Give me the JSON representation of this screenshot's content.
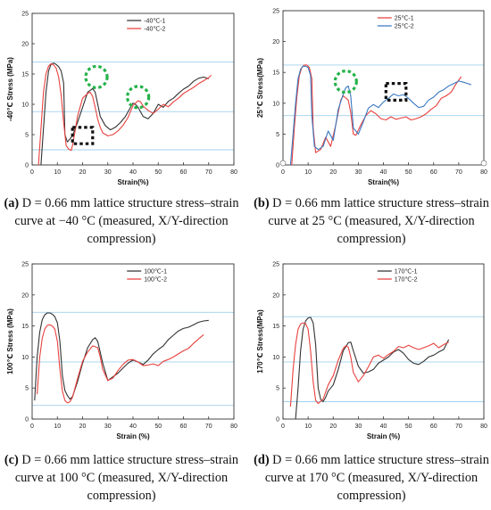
{
  "chart_data": [
    {
      "type": "line",
      "panel": "a",
      "ylabel": "-40℃ Stress (MPa)",
      "xlabel": "Strain(%)",
      "xlim": [
        0,
        80
      ],
      "ylim": [
        0,
        25
      ],
      "xticks": [
        0,
        10,
        20,
        30,
        40,
        50,
        60,
        70,
        80
      ],
      "yticks": [
        0,
        5,
        10,
        15,
        20,
        25
      ],
      "hlines": [
        2.5,
        8.8,
        17.0
      ],
      "legend_position": "top-right",
      "series": [
        {
          "name": "-40℃-1",
          "color": "#333333",
          "x": [
            3.5,
            4.5,
            5.5,
            6.5,
            7.5,
            8.5,
            9.5,
            10.5,
            11.5,
            12.5,
            13,
            14,
            16,
            18,
            20,
            22,
            24,
            25,
            26,
            27,
            29,
            31,
            33,
            35,
            37,
            39,
            40,
            41,
            42,
            44,
            46,
            48,
            50,
            52,
            54,
            56,
            58,
            60,
            62,
            64,
            66,
            68,
            70
          ],
          "y": [
            0,
            6,
            12,
            15.5,
            16.6,
            16.8,
            16.6,
            16.2,
            15.5,
            13.5,
            5,
            3.8,
            4.8,
            7,
            9.5,
            12,
            12.6,
            12,
            10,
            8,
            6.5,
            5.8,
            6.2,
            7,
            8,
            9.5,
            10.2,
            10,
            9.5,
            8,
            7.6,
            8.5,
            10,
            9.5,
            10.5,
            11,
            11.8,
            12.5,
            13,
            13.8,
            14.3,
            14.5,
            14.2
          ]
        },
        {
          "name": "-40℃-2",
          "color": "#e8413d",
          "x": [
            2.5,
            3.5,
            4.5,
            5.5,
            6.5,
            7.5,
            8.5,
            9.5,
            10.5,
            11.5,
            12.5,
            13.5,
            14.5,
            15.5,
            16,
            17,
            18,
            20,
            22,
            23,
            24,
            25,
            26,
            27,
            28,
            30,
            32,
            34,
            36,
            38,
            40,
            42,
            43,
            44,
            46,
            48,
            50,
            52,
            54,
            56,
            58,
            60,
            62,
            64,
            66,
            68,
            70,
            71
          ],
          "y": [
            0,
            6,
            12,
            15,
            16.3,
            16.7,
            16.5,
            16,
            14.5,
            11.5,
            7,
            3.2,
            2.6,
            2.4,
            3.2,
            5.5,
            8,
            11,
            11.8,
            12,
            11.3,
            9.5,
            7.5,
            6.2,
            5.3,
            4.8,
            5,
            5.6,
            6.5,
            7.8,
            9.8,
            10.6,
            10.4,
            9.7,
            9,
            8.5,
            9.2,
            10,
            9.6,
            10.4,
            11,
            11.8,
            12.3,
            12.8,
            13.4,
            13.9,
            14.4,
            14.8
          ]
        }
      ]
    },
    {
      "type": "line",
      "panel": "b",
      "ylabel": "25℃ Stress(MPa)",
      "xlabel": "Strain(%)",
      "xlim": [
        0,
        80
      ],
      "ylim": [
        0,
        25
      ],
      "xticks": [
        0,
        10,
        20,
        30,
        40,
        50,
        60,
        70,
        80
      ],
      "yticks": [
        0,
        5,
        10,
        15,
        20,
        25
      ],
      "hlines": [
        8.0,
        16.2
      ],
      "legend_position": "top-right",
      "series": [
        {
          "name": "25℃-1",
          "color": "#e8413d",
          "x": [
            3.5,
            4.5,
            5.5,
            6.5,
            7.5,
            8.5,
            9.5,
            10.5,
            11.5,
            12,
            13,
            15,
            17,
            19,
            21,
            23,
            24,
            26,
            27,
            28,
            29,
            31,
            33,
            35,
            37,
            39,
            41,
            43,
            45,
            47,
            49,
            51,
            53,
            55,
            57,
            59,
            61,
            63,
            65,
            67,
            69,
            71
          ],
          "y": [
            0,
            6,
            11,
            14.5,
            15.8,
            16.2,
            16.2,
            15.8,
            14,
            6,
            2,
            2.5,
            4.5,
            3,
            6.5,
            10.5,
            11.2,
            10.5,
            8.5,
            5,
            4.8,
            6.5,
            8,
            8.8,
            8.3,
            7.5,
            7.3,
            7.8,
            7.4,
            7.6,
            7.8,
            7.3,
            7.5,
            7.8,
            8.3,
            9,
            9.6,
            10.8,
            11.2,
            11.8,
            13.2,
            14.3
          ]
        },
        {
          "name": "25℃-2",
          "color": "#3a78c2",
          "x": [
            3,
            4,
            5,
            6,
            7,
            8,
            9,
            10,
            11,
            11.5,
            12.5,
            14,
            16,
            18,
            20,
            22,
            24,
            25,
            26,
            27,
            28,
            30,
            32,
            34,
            36,
            38,
            40,
            42,
            44,
            46,
            48,
            50,
            52,
            54,
            56,
            58,
            60,
            62,
            64,
            66,
            68,
            70,
            72,
            75
          ],
          "y": [
            0,
            5,
            10,
            14,
            15.5,
            16,
            16,
            15.8,
            14.5,
            8,
            3,
            2.5,
            3,
            5.5,
            4,
            9,
            11.5,
            12.5,
            12.8,
            11.2,
            6,
            5,
            7,
            9.2,
            9.8,
            9.3,
            10.2,
            10.8,
            11.5,
            11.2,
            11.4,
            10.8,
            10,
            9.3,
            9.5,
            10.5,
            11,
            11.8,
            12.2,
            12.8,
            13.2,
            13.6,
            13.4,
            13.0
          ]
        }
      ]
    },
    {
      "type": "line",
      "panel": "c",
      "ylabel": "100℃ Stress (MPa)",
      "xlabel": "Strain (%)",
      "xlim": [
        0,
        80
      ],
      "ylim": [
        0,
        25
      ],
      "xticks": [
        0,
        10,
        20,
        30,
        40,
        50,
        60,
        70,
        80
      ],
      "yticks": [
        0,
        5,
        10,
        15,
        20,
        25
      ],
      "hlines": [
        2.2,
        9.2,
        17.2
      ],
      "legend_position": "top-right",
      "series": [
        {
          "name": "100℃-1",
          "color": "#333333",
          "x": [
            1,
            2,
            3,
            4,
            5,
            6,
            7,
            8,
            9,
            10,
            11,
            12,
            13,
            14,
            15,
            16,
            18,
            20,
            22,
            24,
            25,
            26,
            28,
            30,
            32,
            34,
            36,
            38,
            40,
            42,
            44,
            46,
            48,
            50,
            52,
            54,
            56,
            58,
            60,
            62,
            64,
            66,
            68,
            70
          ],
          "y": [
            3,
            10,
            14,
            16,
            16.8,
            17.1,
            17.1,
            16.9,
            16.5,
            15.5,
            12.5,
            7,
            4.6,
            3.8,
            3.2,
            3.6,
            6,
            9,
            11.5,
            12.8,
            13.1,
            12.5,
            9,
            6.2,
            6.8,
            7.4,
            8.2,
            9,
            9.5,
            9.2,
            8.8,
            9.5,
            10.5,
            11.2,
            11.8,
            12.8,
            13.5,
            14.2,
            14.6,
            14.8,
            15.2,
            15.6,
            15.8,
            15.9
          ]
        },
        {
          "name": "100℃-2",
          "color": "#e8413d",
          "x": [
            2,
            3,
            4,
            5,
            6,
            7,
            8,
            9,
            10,
            11,
            12,
            13,
            14,
            15,
            16,
            18,
            20,
            22,
            24,
            26,
            27,
            28,
            30,
            32,
            34,
            36,
            38,
            40,
            42,
            44,
            46,
            48,
            50,
            52,
            54,
            56,
            58,
            60,
            62,
            64,
            66,
            68
          ],
          "y": [
            4,
            10,
            13,
            14.5,
            15.1,
            15.2,
            15,
            14.5,
            12.5,
            8,
            4.5,
            3,
            2.6,
            2.8,
            3.5,
            6.5,
            9.3,
            10.8,
            11.8,
            11.5,
            10,
            8,
            6.2,
            6.6,
            7.8,
            8.8,
            9.5,
            9.6,
            9.2,
            8.6,
            8.7,
            8.9,
            8.6,
            9.3,
            9.6,
            10,
            10.5,
            11,
            11.4,
            12.2,
            12.9,
            13.6
          ]
        }
      ]
    },
    {
      "type": "line",
      "panel": "d",
      "ylabel": "170℃ Stress(MPa)",
      "xlabel": "Strain (%)",
      "xlim": [
        0,
        80
      ],
      "ylim": [
        0,
        25
      ],
      "xticks": [
        0,
        10,
        20,
        30,
        40,
        50,
        60,
        70,
        80
      ],
      "yticks": [
        0,
        5,
        10,
        15,
        20,
        25
      ],
      "hlines": [
        2.8,
        9.2,
        16.5
      ],
      "legend_position": "top-right",
      "series": [
        {
          "name": "170℃-1",
          "color": "#333333",
          "x": [
            5,
            6,
            7,
            8,
            9,
            10,
            11,
            12,
            13,
            14,
            15,
            16,
            17,
            18,
            19,
            20,
            22,
            24,
            26,
            27,
            28,
            30,
            32,
            34,
            36,
            38,
            40,
            42,
            44,
            46,
            48,
            50,
            52,
            54,
            56,
            58,
            60,
            62,
            64,
            66
          ],
          "y": [
            0,
            5,
            11,
            14.5,
            15.8,
            16.3,
            16.4,
            15.5,
            12,
            5,
            3.2,
            2.8,
            3.5,
            4.5,
            5,
            5.5,
            8,
            11,
            12.3,
            12.4,
            11,
            8.5,
            7.4,
            7.6,
            8,
            9,
            9.5,
            10,
            10.8,
            11.2,
            10.6,
            9.6,
            9,
            8.8,
            9.3,
            10,
            10.3,
            10.8,
            11.2,
            12.8
          ]
        },
        {
          "name": "170℃-2",
          "color": "#e8413d",
          "x": [
            3,
            4,
            5,
            6,
            7,
            8,
            9,
            10,
            11,
            12,
            13,
            14,
            16,
            18,
            20,
            22,
            24,
            25,
            26,
            27,
            28,
            30,
            32,
            34,
            36,
            38,
            40,
            42,
            44,
            46,
            48,
            50,
            52,
            54,
            56,
            58,
            60,
            62,
            64,
            66
          ],
          "y": [
            2,
            8,
            12,
            14.5,
            15.3,
            15.5,
            15.4,
            14.5,
            11,
            6,
            3,
            2.5,
            3.2,
            5.5,
            7,
            9.5,
            11.4,
            11.8,
            11.6,
            10,
            7.5,
            6,
            7,
            8.4,
            10,
            10.3,
            9.8,
            10.4,
            10.9,
            11.7,
            11.5,
            11.9,
            11.5,
            11.2,
            11.5,
            11.8,
            12.2,
            11.5,
            12,
            12.4
          ]
        }
      ]
    }
  ],
  "captions": [
    {
      "label": "(a)",
      "text": " D = 0.66 mm lattice structure stress–strain curve at −40 °C (measured, X/Y-direction compression)"
    },
    {
      "label": "(b)",
      "text": " D = 0.66 mm lattice structure stress–strain curve at 25 °C (measured, X/Y-direction compression)"
    },
    {
      "label": "(c)",
      "text": " D = 0.66 mm lattice structure stress–strain curve at 100 °C (measured, X/Y-direction compression)"
    },
    {
      "label": "(d)",
      "text": " D = 0.66 mm lattice structure stress–strain curve at 170 °C (measured, X/Y-direction compression)"
    }
  ],
  "markers": {
    "green_dashed_circles": [
      {
        "panel": "a",
        "x": 25.5,
        "y": 14.5
      },
      {
        "panel": "a",
        "x": 42,
        "y": 11.2
      },
      {
        "panel": "b",
        "x": 25,
        "y": 13.5
      }
    ],
    "black_dashed_boxes": [
      {
        "panel": "a",
        "x1": 16,
        "x2": 24,
        "y1": 3.5,
        "y2": 6.2
      },
      {
        "panel": "b",
        "x1": 41,
        "x2": 49,
        "y1": 10.5,
        "y2": 13.2
      }
    ]
  },
  "colors": {
    "hline": "#9fd0ee",
    "circle": "#25b24a",
    "box": "#111111"
  }
}
